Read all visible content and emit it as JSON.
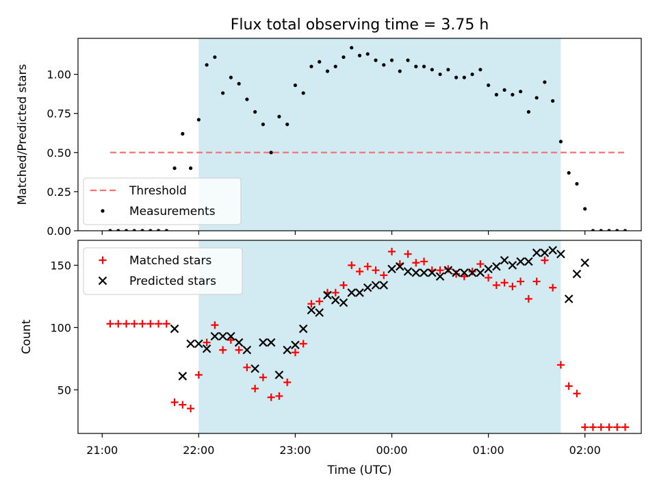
{
  "chart_data": [
    {
      "type": "scatter",
      "title": "Flux total observing time = 3.75 h",
      "xlabel": "",
      "ylabel": "Matched/Predicted stars",
      "ylim": [
        0,
        1.23
      ],
      "yticks": [
        0.0,
        0.25,
        0.5,
        0.75,
        1.0
      ],
      "ytick_labels": [
        "0.00",
        "0.25",
        "0.50",
        "0.75",
        "1.00"
      ],
      "xlim_minutes": [
        -15,
        335
      ],
      "shaded_span_minutes": [
        60,
        285
      ],
      "shade_color": "#add8e6",
      "legend_position": "lower left",
      "legend": [
        "Threshold",
        "Measurements"
      ],
      "series": [
        {
          "name": "Threshold",
          "kind": "line",
          "color": "#ff7070",
          "x": [
            5,
            325
          ],
          "y": [
            0.5,
            0.5
          ]
        },
        {
          "name": "Measurements",
          "kind": "scatter",
          "color": "#000000",
          "x": [
            5,
            10,
            15,
            20,
            25,
            30,
            35,
            40,
            45,
            50,
            55,
            60,
            65,
            70,
            75,
            80,
            85,
            90,
            95,
            100,
            105,
            110,
            115,
            120,
            125,
            130,
            135,
            140,
            145,
            150,
            155,
            160,
            165,
            170,
            175,
            180,
            185,
            190,
            195,
            200,
            205,
            210,
            215,
            220,
            225,
            230,
            235,
            240,
            245,
            250,
            255,
            260,
            265,
            270,
            275,
            280,
            285,
            290,
            295,
            300,
            305,
            310,
            315,
            320,
            325
          ],
          "y": [
            0,
            0,
            0,
            0,
            0,
            0,
            0,
            0,
            0.4,
            0.62,
            0.4,
            0.71,
            1.06,
            1.11,
            0.88,
            0.98,
            0.94,
            0.84,
            0.76,
            0.68,
            0.5,
            0.73,
            0.68,
            0.93,
            0.88,
            1.05,
            1.08,
            1.02,
            1.05,
            1.11,
            1.17,
            1.12,
            1.13,
            1.09,
            1.06,
            1.09,
            1.02,
            1.09,
            1.05,
            1.05,
            1.03,
            1.0,
            1.03,
            0.98,
            0.98,
            1.0,
            1.03,
            0.93,
            0.87,
            0.9,
            0.87,
            0.89,
            0.76,
            0.85,
            0.95,
            0.83,
            0.57,
            0.37,
            0.3,
            0.14,
            0,
            0,
            0,
            0,
            0
          ]
        }
      ]
    },
    {
      "type": "scatter",
      "title": "",
      "xlabel": "Time (UTC)",
      "ylabel": "Count",
      "ylim": [
        15,
        170
      ],
      "yticks": [
        50,
        100,
        150
      ],
      "ytick_labels": [
        "50",
        "100",
        "150"
      ],
      "xlim_minutes": [
        -15,
        335
      ],
      "xticks_minutes": [
        0,
        60,
        120,
        180,
        240,
        300
      ],
      "xtick_labels": [
        "21:00",
        "22:00",
        "23:00",
        "00:00",
        "01:00",
        "02:00"
      ],
      "shaded_span_minutes": [
        60,
        285
      ],
      "shade_color": "#add8e6",
      "legend_position": "upper left",
      "legend": [
        "Matched stars",
        "Predicted stars"
      ],
      "series": [
        {
          "name": "Matched stars",
          "kind": "plus",
          "color": "#ff0000",
          "x": [
            5,
            10,
            15,
            20,
            25,
            30,
            35,
            40,
            45,
            50,
            55,
            60,
            65,
            70,
            75,
            80,
            85,
            90,
            95,
            100,
            105,
            110,
            115,
            120,
            125,
            130,
            135,
            140,
            145,
            150,
            155,
            160,
            165,
            170,
            175,
            180,
            185,
            190,
            195,
            200,
            205,
            210,
            215,
            220,
            225,
            230,
            235,
            240,
            245,
            250,
            255,
            260,
            265,
            270,
            275,
            280,
            285,
            290,
            295,
            300,
            305,
            310,
            315,
            320,
            325
          ],
          "y": [
            103,
            103,
            103,
            103,
            103,
            103,
            103,
            103,
            40,
            38,
            35,
            62,
            88,
            102,
            82,
            90,
            82,
            68,
            51,
            60,
            44,
            45,
            56,
            80,
            87,
            119,
            121,
            128,
            128,
            134,
            150,
            145,
            149,
            146,
            142,
            161,
            151,
            159,
            152,
            153,
            146,
            146,
            147,
            143,
            141,
            145,
            151,
            140,
            134,
            136,
            133,
            137,
            123,
            137,
            154,
            132,
            70,
            53,
            47,
            20,
            20,
            20,
            20,
            20,
            20
          ]
        },
        {
          "name": "Predicted stars",
          "kind": "x",
          "color": "#000000",
          "x": [
            45,
            50,
            55,
            60,
            65,
            70,
            75,
            80,
            85,
            90,
            95,
            100,
            105,
            110,
            115,
            120,
            125,
            130,
            135,
            140,
            145,
            150,
            155,
            160,
            165,
            170,
            175,
            180,
            185,
            190,
            195,
            200,
            205,
            210,
            215,
            220,
            225,
            230,
            235,
            240,
            245,
            250,
            255,
            260,
            265,
            270,
            275,
            280,
            285,
            290,
            295,
            300
          ],
          "y": [
            99,
            61,
            87,
            87,
            83,
            93,
            93,
            93,
            88,
            82,
            67,
            88,
            88,
            62,
            82,
            86,
            99,
            114,
            112,
            126,
            122,
            120,
            128,
            128,
            132,
            134,
            134,
            147,
            149,
            145,
            144,
            144,
            144,
            141,
            146,
            144,
            144,
            144,
            144,
            147,
            149,
            154,
            150,
            153,
            153,
            160,
            160,
            162,
            159,
            123,
            143,
            152
          ]
        }
      ]
    }
  ]
}
